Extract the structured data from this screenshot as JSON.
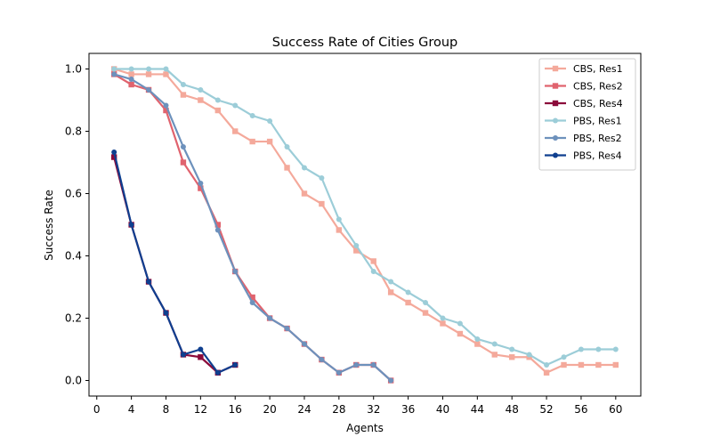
{
  "chart_data": {
    "type": "line",
    "title": "Success Rate of Cities Group",
    "xlabel": "Agents",
    "ylabel": "Success Rate",
    "xlim": [
      -0.9,
      62.9
    ],
    "ylim": [
      -0.05,
      1.05
    ],
    "xticks": [
      0,
      4,
      8,
      12,
      16,
      20,
      24,
      28,
      32,
      36,
      40,
      44,
      48,
      52,
      56,
      60
    ],
    "yticks": [
      0.0,
      0.2,
      0.4,
      0.6,
      0.8,
      1.0
    ],
    "xtick_labels": [
      "0",
      "4",
      "8",
      "12",
      "16",
      "20",
      "24",
      "28",
      "32",
      "36",
      "40",
      "44",
      "48",
      "52",
      "56",
      "60"
    ],
    "ytick_labels": [
      "0.0",
      "0.2",
      "0.4",
      "0.6",
      "0.8",
      "1.0"
    ],
    "grid": false,
    "legend_position": "top-right",
    "series": [
      {
        "name": "CBS, Res1",
        "color": "#f4a99b",
        "marker": "square",
        "x": [
          2,
          4,
          6,
          8,
          10,
          12,
          14,
          16,
          18,
          20,
          22,
          24,
          26,
          28,
          30,
          32,
          34,
          36,
          38,
          40,
          42,
          44,
          46,
          48,
          50,
          52,
          54,
          56,
          58,
          60
        ],
        "y": [
          1.0,
          0.983,
          0.983,
          0.983,
          0.917,
          0.9,
          0.867,
          0.8,
          0.767,
          0.767,
          0.683,
          0.6,
          0.567,
          0.483,
          0.417,
          0.383,
          0.283,
          0.25,
          0.217,
          0.183,
          0.15,
          0.117,
          0.083,
          0.075,
          0.075,
          0.025,
          0.05,
          0.05,
          0.05,
          0.05
        ]
      },
      {
        "name": "CBS, Res2",
        "color": "#e0636e",
        "marker": "square",
        "x": [
          2,
          4,
          6,
          8,
          10,
          12,
          14,
          16,
          18,
          20,
          22,
          24,
          26,
          28,
          30,
          32,
          34
        ],
        "y": [
          0.983,
          0.95,
          0.933,
          0.867,
          0.7,
          0.617,
          0.5,
          0.35,
          0.267,
          0.2,
          0.167,
          0.117,
          0.067,
          0.025,
          0.05,
          0.05,
          0.0
        ]
      },
      {
        "name": "CBS, Res4",
        "color": "#8b0a3a",
        "marker": "square",
        "x": [
          2,
          4,
          6,
          8,
          10,
          12,
          14,
          16
        ],
        "y": [
          0.717,
          0.5,
          0.317,
          0.217,
          0.083,
          0.075,
          0.025,
          0.05
        ]
      },
      {
        "name": "PBS, Res1",
        "color": "#9ccdd8",
        "marker": "circle",
        "x": [
          2,
          4,
          6,
          8,
          10,
          12,
          14,
          16,
          18,
          20,
          22,
          24,
          26,
          28,
          30,
          32,
          34,
          36,
          38,
          40,
          42,
          44,
          46,
          48,
          50,
          52,
          54,
          56,
          58,
          60
        ],
        "y": [
          1.0,
          1.0,
          1.0,
          1.0,
          0.95,
          0.933,
          0.9,
          0.883,
          0.85,
          0.833,
          0.75,
          0.683,
          0.65,
          0.517,
          0.433,
          0.35,
          0.317,
          0.283,
          0.25,
          0.2,
          0.183,
          0.133,
          0.117,
          0.1,
          0.083,
          0.05,
          0.075,
          0.1,
          0.1,
          0.1
        ]
      },
      {
        "name": "PBS, Res2",
        "color": "#6d91bc",
        "marker": "circle",
        "x": [
          2,
          4,
          6,
          8,
          10,
          12,
          14,
          16,
          18,
          20,
          22,
          24,
          26,
          28,
          30,
          32,
          34
        ],
        "y": [
          0.983,
          0.967,
          0.933,
          0.883,
          0.75,
          0.633,
          0.483,
          0.35,
          0.25,
          0.2,
          0.167,
          0.117,
          0.067,
          0.025,
          0.05,
          0.05,
          0.0
        ]
      },
      {
        "name": "PBS, Res4",
        "color": "#0f3f8f",
        "marker": "circle",
        "x": [
          2,
          4,
          6,
          8,
          10,
          12,
          14,
          16
        ],
        "y": [
          0.733,
          0.5,
          0.317,
          0.217,
          0.083,
          0.1,
          0.025,
          0.05
        ]
      }
    ]
  }
}
